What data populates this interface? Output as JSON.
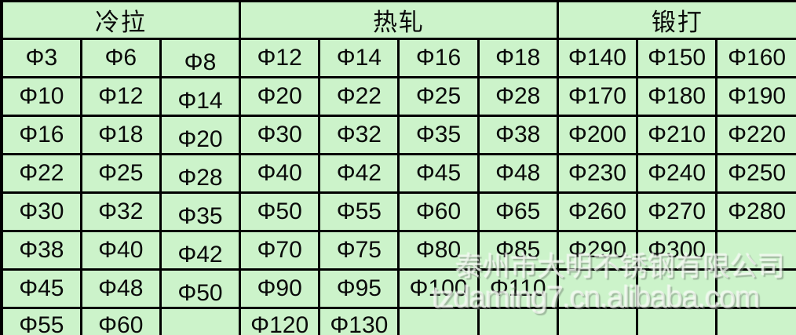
{
  "colors": {
    "cell_background": "#ccf3ca",
    "border": "#000000",
    "text": "#0a0a0a",
    "watermark": "rgba(244,248,242,0.68)"
  },
  "table": {
    "header_groups": [
      {
        "label": "冷拉",
        "span": 3
      },
      {
        "label": "热轧",
        "span": 4
      },
      {
        "label": "锻打",
        "span": 3
      }
    ],
    "rows": [
      [
        "Φ3",
        "Φ6",
        "Φ8",
        "Φ12",
        "Φ14",
        "Φ16",
        "Φ18",
        "Φ140",
        "Φ150",
        "Φ160"
      ],
      [
        "Φ10",
        "Φ12",
        "Φ14",
        "Φ20",
        "Φ22",
        "Φ25",
        "Φ28",
        "Φ170",
        "Φ180",
        "Φ190"
      ],
      [
        "Φ16",
        "Φ18",
        "Φ20",
        "Φ30",
        "Φ32",
        "Φ35",
        "Φ38",
        "Φ200",
        "Φ210",
        "Φ220"
      ],
      [
        "Φ22",
        "Φ25",
        "Φ28",
        "Φ40",
        "Φ42",
        "Φ45",
        "Φ48",
        "Φ230",
        "Φ240",
        "Φ250"
      ],
      [
        "Φ30",
        "Φ32",
        "Φ35",
        "Φ50",
        "Φ55",
        "Φ60",
        "Φ65",
        "Φ260",
        "Φ270",
        "Φ280"
      ],
      [
        "Φ38",
        "Φ40",
        "Φ42",
        "Φ70",
        "Φ75",
        "Φ80",
        "Φ85",
        "Φ290",
        "Φ300",
        ""
      ],
      [
        "Φ45",
        "Φ48",
        "Φ50",
        "Φ90",
        "Φ95",
        "Φ100",
        "Φ110",
        "",
        "",
        ""
      ],
      [
        "Φ55",
        "Φ60",
        "",
        "Φ120",
        "Φ130",
        "",
        "",
        "",
        "",
        ""
      ]
    ]
  },
  "watermark": {
    "company": "泰州市大明不锈钢有限公司",
    "url": "tzdaming7.cn.alibaba.com"
  }
}
